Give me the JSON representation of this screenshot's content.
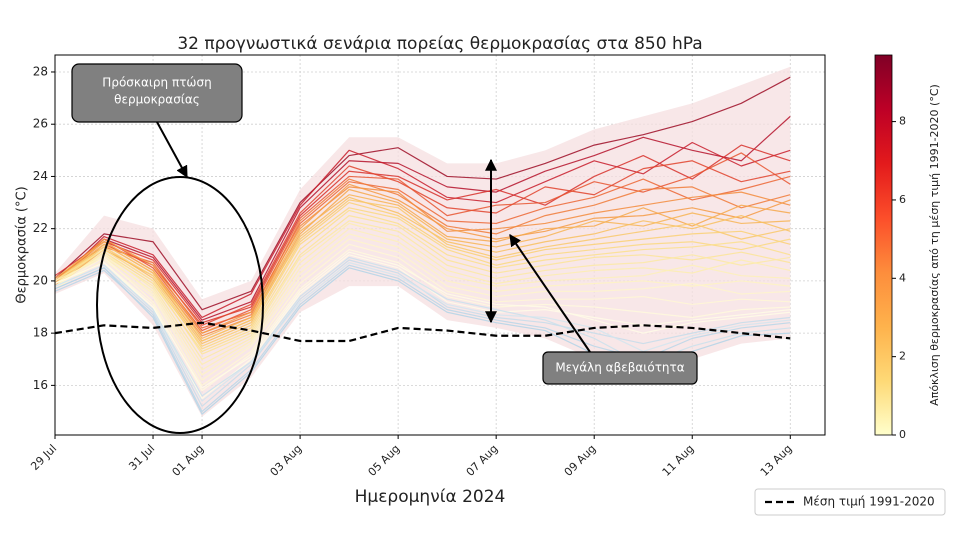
{
  "chart_data": {
    "type": "line",
    "title": "32 προγνωστικά σενάρια πορείας θερμοκρασίας στα 850 hPa",
    "x_label": "Ημερομηνία 2024",
    "y_label": "Θερμοκρασία (°C)",
    "x": [
      "2024-07-29",
      "2024-07-30",
      "2024-07-31",
      "2024-08-01",
      "2024-08-02",
      "2024-08-03",
      "2024-08-04",
      "2024-08-05",
      "2024-08-06",
      "2024-08-07",
      "2024-08-08",
      "2024-08-09",
      "2024-08-10",
      "2024-08-11",
      "2024-08-12",
      "2024-08-13"
    ],
    "xlim": [
      "2024-07-29",
      "2024-08-13T17:00:00Z"
    ],
    "xticks": [
      {
        "value": "2024-07-29",
        "label": "29 Jul"
      },
      {
        "value": "2024-07-31",
        "label": "31 Jul"
      },
      {
        "value": "2024-08-01",
        "label": "01 Aug"
      },
      {
        "value": "2024-08-03",
        "label": "03 Aug"
      },
      {
        "value": "2024-08-05",
        "label": "05 Aug"
      },
      {
        "value": "2024-08-07",
        "label": "07 Aug"
      },
      {
        "value": "2024-08-09",
        "label": "09 Aug"
      },
      {
        "value": "2024-08-11",
        "label": "11 Aug"
      },
      {
        "value": "2024-08-13",
        "label": "13 Aug"
      }
    ],
    "ylim": [
      14.1,
      28.65
    ],
    "yticks": [
      16,
      18,
      20,
      22,
      24,
      26,
      28
    ],
    "grid": true,
    "band": {
      "color": "#f6dfe0",
      "lower": [
        19.5,
        20.3,
        18.3,
        14.8,
        16.3,
        18.8,
        19.8,
        19.8,
        18.5,
        18.2,
        17.8,
        17.0,
        16.4,
        17.0,
        17.6,
        17.8
      ],
      "upper": [
        20.3,
        22.5,
        22.0,
        19.3,
        20.0,
        23.5,
        25.5,
        25.5,
        24.5,
        24.5,
        25.0,
        25.8,
        26.3,
        26.8,
        27.5,
        28.2
      ]
    },
    "series": [
      {
        "color": "#9e0d26",
        "values": [
          20.1,
          21.8,
          21.5,
          18.9,
          19.6,
          23.0,
          24.8,
          25.1,
          24.0,
          23.9,
          24.5,
          25.2,
          25.6,
          26.1,
          26.8,
          27.8
        ]
      },
      {
        "color": "#b5122a",
        "values": [
          20.0,
          21.6,
          20.9,
          18.5,
          19.2,
          22.8,
          24.6,
          24.5,
          23.6,
          23.4,
          24.2,
          24.8,
          25.5,
          25.0,
          24.6,
          26.3
        ]
      },
      {
        "color": "#c81c2a",
        "values": [
          19.9,
          21.7,
          21.0,
          18.6,
          19.5,
          22.9,
          25.0,
          24.3,
          23.2,
          23.0,
          23.8,
          24.6,
          24.1,
          25.3,
          24.4,
          25.0
        ]
      },
      {
        "color": "#d7302a",
        "values": [
          20.2,
          21.5,
          20.8,
          18.4,
          19.0,
          22.5,
          24.2,
          24.0,
          23.1,
          23.5,
          22.9,
          24.0,
          24.8,
          23.9,
          25.2,
          24.6
        ]
      },
      {
        "color": "#e1422c",
        "values": [
          20.0,
          21.4,
          20.6,
          18.3,
          19.1,
          22.6,
          24.4,
          23.8,
          22.8,
          22.6,
          23.6,
          23.3,
          24.3,
          24.6,
          23.8,
          24.2
        ]
      },
      {
        "color": "#e8542f",
        "values": [
          19.8,
          21.6,
          20.5,
          18.1,
          18.9,
          22.4,
          24.0,
          23.9,
          22.5,
          22.9,
          23.0,
          23.8,
          23.4,
          24.0,
          24.9,
          23.7
        ]
      },
      {
        "color": "#ec6533",
        "values": [
          20.1,
          21.3,
          20.7,
          18.2,
          18.8,
          22.2,
          23.8,
          23.5,
          22.3,
          22.2,
          22.8,
          23.2,
          23.9,
          23.1,
          23.5,
          24.0
        ]
      },
      {
        "color": "#f07a37",
        "values": [
          20.0,
          21.5,
          20.4,
          18.0,
          18.7,
          22.3,
          23.9,
          23.3,
          22.1,
          21.8,
          22.5,
          22.9,
          23.5,
          23.6,
          22.8,
          23.3
        ]
      },
      {
        "color": "#f38b3c",
        "values": [
          19.9,
          21.4,
          20.3,
          17.9,
          18.6,
          22.1,
          23.6,
          23.4,
          21.9,
          22.0,
          22.2,
          22.6,
          22.9,
          23.2,
          23.4,
          22.9
        ]
      },
      {
        "color": "#f59a43",
        "values": [
          20.0,
          21.6,
          20.6,
          18.0,
          18.8,
          22.0,
          23.7,
          23.1,
          22.0,
          21.6,
          21.9,
          22.4,
          22.5,
          22.8,
          22.4,
          23.1
        ]
      },
      {
        "color": "#f6a84b",
        "values": [
          19.8,
          21.2,
          20.2,
          17.7,
          18.5,
          21.8,
          23.5,
          23.0,
          21.7,
          21.5,
          22.0,
          22.1,
          22.8,
          22.1,
          22.9,
          22.6
        ]
      },
      {
        "color": "#f7b454",
        "values": [
          20.1,
          21.5,
          20.4,
          17.8,
          18.6,
          21.9,
          23.3,
          22.9,
          21.6,
          21.3,
          21.7,
          22.3,
          22.1,
          22.6,
          22.2,
          22.3
        ]
      },
      {
        "color": "#f8bf5e",
        "values": [
          19.9,
          21.3,
          20.1,
          17.6,
          18.4,
          21.7,
          23.2,
          22.6,
          21.5,
          21.1,
          21.5,
          21.8,
          22.3,
          22.0,
          22.5,
          21.9
        ]
      },
      {
        "color": "#f9c868",
        "values": [
          20.0,
          21.4,
          20.3,
          17.7,
          18.5,
          21.6,
          23.1,
          22.8,
          21.4,
          20.9,
          21.3,
          21.6,
          21.9,
          22.2,
          21.6,
          22.0
        ]
      },
      {
        "color": "#fad073",
        "values": [
          19.9,
          21.2,
          20.0,
          17.5,
          18.3,
          21.5,
          23.0,
          22.5,
          21.3,
          20.8,
          21.2,
          21.4,
          21.6,
          21.8,
          21.9,
          21.4
        ]
      },
      {
        "color": "#fad87f",
        "values": [
          20.0,
          21.3,
          20.2,
          17.4,
          18.2,
          21.4,
          22.8,
          22.4,
          21.2,
          20.6,
          21.0,
          21.2,
          21.4,
          21.5,
          21.2,
          21.6
        ]
      },
      {
        "color": "#fbdf8b",
        "values": [
          19.8,
          21.1,
          19.9,
          17.3,
          18.1,
          21.2,
          22.7,
          22.2,
          21.0,
          20.5,
          20.8,
          21.0,
          21.2,
          21.3,
          21.5,
          21.0
        ]
      },
      {
        "color": "#fce497",
        "values": [
          20.0,
          21.2,
          20.0,
          17.2,
          18.0,
          21.0,
          22.5,
          22.1,
          20.8,
          20.3,
          20.6,
          20.9,
          21.0,
          20.8,
          21.1,
          20.7
        ]
      },
      {
        "color": "#fce9a3",
        "values": [
          19.9,
          21.0,
          19.8,
          17.0,
          17.9,
          20.9,
          22.3,
          21.9,
          20.6,
          20.1,
          20.4,
          20.6,
          20.7,
          21.0,
          20.6,
          20.9
        ]
      },
      {
        "color": "#fdedae",
        "values": [
          19.8,
          21.1,
          19.7,
          16.8,
          17.8,
          20.7,
          22.2,
          21.7,
          20.4,
          19.9,
          20.2,
          20.4,
          20.5,
          20.3,
          20.8,
          20.4
        ]
      },
      {
        "color": "#fdf0b8",
        "values": [
          20.0,
          20.9,
          19.6,
          16.6,
          17.7,
          20.5,
          22.0,
          21.5,
          20.2,
          19.8,
          20.0,
          20.1,
          20.2,
          20.6,
          20.2,
          20.1
        ]
      },
      {
        "color": "#fef3c2",
        "values": [
          19.9,
          21.0,
          19.5,
          16.4,
          17.6,
          20.3,
          21.8,
          21.3,
          20.0,
          19.6,
          19.8,
          19.9,
          20.0,
          19.8,
          20.0,
          19.8
        ]
      },
      {
        "color": "#fef5cc",
        "values": [
          19.7,
          20.8,
          19.4,
          16.2,
          17.5,
          20.1,
          21.6,
          21.1,
          19.8,
          19.4,
          19.6,
          19.6,
          19.7,
          19.9,
          19.5,
          19.6
        ]
      },
      {
        "color": "#fff7d5",
        "values": [
          19.8,
          20.9,
          19.2,
          16.0,
          17.3,
          19.9,
          21.4,
          20.9,
          19.6,
          19.2,
          19.3,
          19.3,
          19.4,
          19.1,
          19.3,
          19.2
        ]
      },
      {
        "color": "#fff9dd",
        "values": [
          19.9,
          20.7,
          19.1,
          15.8,
          17.2,
          19.7,
          21.2,
          20.7,
          19.4,
          19.0,
          19.1,
          19.0,
          18.8,
          18.6,
          18.9,
          19.0
        ]
      },
      {
        "color": "#fffbe6",
        "values": [
          19.8,
          20.6,
          19.0,
          15.5,
          17.0,
          19.5,
          21.0,
          20.5,
          19.2,
          18.8,
          18.9,
          18.6,
          18.3,
          18.5,
          18.7,
          18.9
        ]
      },
      {
        "color": "#c5dcea",
        "values": [
          19.7,
          20.5,
          18.8,
          15.2,
          16.8,
          19.3,
          20.8,
          20.3,
          19.0,
          18.6,
          18.4,
          18.0,
          17.6,
          18.0,
          18.4,
          18.6
        ]
      },
      {
        "color": "#b9d6e8",
        "values": [
          19.6,
          20.4,
          18.7,
          15.0,
          16.6,
          19.1,
          20.6,
          20.1,
          18.9,
          18.5,
          18.2,
          17.5,
          17.0,
          17.8,
          18.2,
          18.4
        ]
      },
      {
        "color": "#c9e0ec",
        "values": [
          19.8,
          20.6,
          18.9,
          15.6,
          16.9,
          19.4,
          20.9,
          20.4,
          19.3,
          18.9,
          18.5,
          17.8,
          16.8,
          17.5,
          18.0,
          18.2
        ]
      },
      {
        "color": "#b3d3e6",
        "values": [
          19.7,
          20.5,
          18.6,
          14.9,
          16.5,
          19.0,
          20.5,
          20.0,
          18.8,
          18.4,
          18.1,
          17.2,
          16.6,
          17.3,
          17.9,
          18.0
        ]
      },
      {
        "color": "#fffbe6",
        "values": [
          19.9,
          20.7,
          19.0,
          15.9,
          17.1,
          19.6,
          21.1,
          20.6,
          19.5,
          19.1,
          19.0,
          18.5,
          18.0,
          18.4,
          18.6,
          18.8
        ]
      },
      {
        "color": "#d2e5ee",
        "values": [
          19.8,
          20.6,
          18.9,
          15.4,
          16.9,
          19.2,
          20.7,
          20.2,
          19.1,
          18.7,
          18.6,
          18.2,
          17.3,
          17.9,
          18.3,
          18.5
        ]
      },
      {
        "name": "Μέση τιμή 1991-2020",
        "color": "#000000",
        "style": "dashed",
        "values": [
          18.0,
          18.3,
          18.2,
          18.4,
          18.1,
          17.7,
          17.7,
          18.2,
          18.1,
          17.9,
          17.9,
          18.2,
          18.3,
          18.2,
          18.0,
          17.8
        ]
      }
    ],
    "legend": "bottom-right",
    "colorbar": {
      "label": "Απόκλιση θερμοκρασίας από τη μέση τιμή 1991-2020 (°C)",
      "lim": [
        0,
        9.7
      ],
      "ticks": [
        0,
        2,
        4,
        6,
        8
      ],
      "colors": [
        "#ffffcc",
        "#fed976",
        "#feb24c",
        "#fd8d3c",
        "#fc4e2a",
        "#e31a1c",
        "#bd0026",
        "#800026"
      ]
    },
    "annotations": [
      {
        "lines": [
          "Πρόσκαιρη πτώση",
          "θερμοκρασίας"
        ]
      },
      {
        "lines": [
          "Μεγάλη αβεβαιότητα"
        ]
      }
    ]
  }
}
